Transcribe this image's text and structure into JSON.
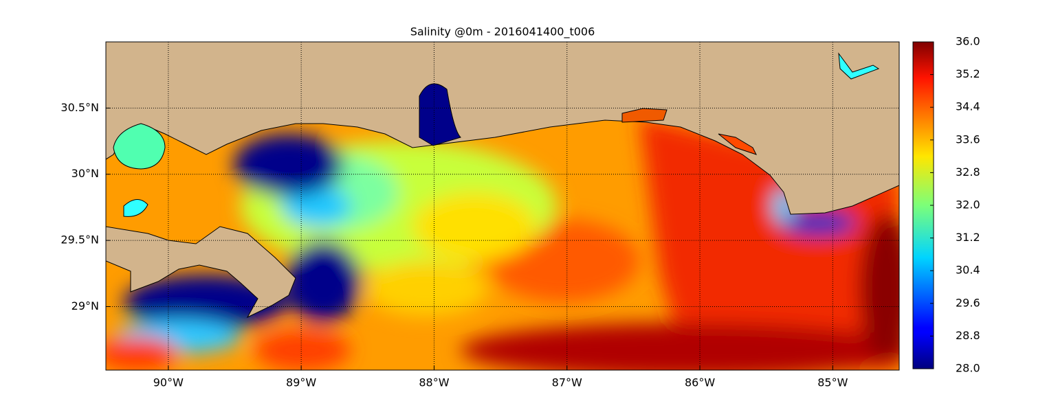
{
  "title": "Salinity @0m - 2016041400_t006",
  "map": {
    "xlim": [
      -90.47,
      -84.5
    ],
    "ylim": [
      28.52,
      31.0
    ],
    "xticks": [
      {
        "value": -90,
        "label": "90°W"
      },
      {
        "value": -89,
        "label": "89°W"
      },
      {
        "value": -88,
        "label": "88°W"
      },
      {
        "value": -87,
        "label": "87°W"
      },
      {
        "value": -86,
        "label": "86°W"
      },
      {
        "value": -85,
        "label": "85°W"
      }
    ],
    "yticks": [
      {
        "value": 29,
        "label": "29°N"
      },
      {
        "value": 29.5,
        "label": "29.5°N"
      },
      {
        "value": 30,
        "label": "30°N"
      },
      {
        "value": 30.5,
        "label": "30.5°N"
      }
    ],
    "grid": true
  },
  "colorbar": {
    "lim": [
      28,
      36
    ],
    "ticks": [
      {
        "value": 28,
        "label": "28.0"
      },
      {
        "value": 28.8,
        "label": "28.8"
      },
      {
        "value": 29.6,
        "label": "29.6"
      },
      {
        "value": 30.4,
        "label": "30.4"
      },
      {
        "value": 31.2,
        "label": "31.2"
      },
      {
        "value": 32,
        "label": "32.0"
      },
      {
        "value": 32.8,
        "label": "32.8"
      },
      {
        "value": 33.6,
        "label": "33.6"
      },
      {
        "value": 34.4,
        "label": "34.4"
      },
      {
        "value": 35.2,
        "label": "35.2"
      },
      {
        "value": 36,
        "label": "36.0"
      }
    ]
  }
}
